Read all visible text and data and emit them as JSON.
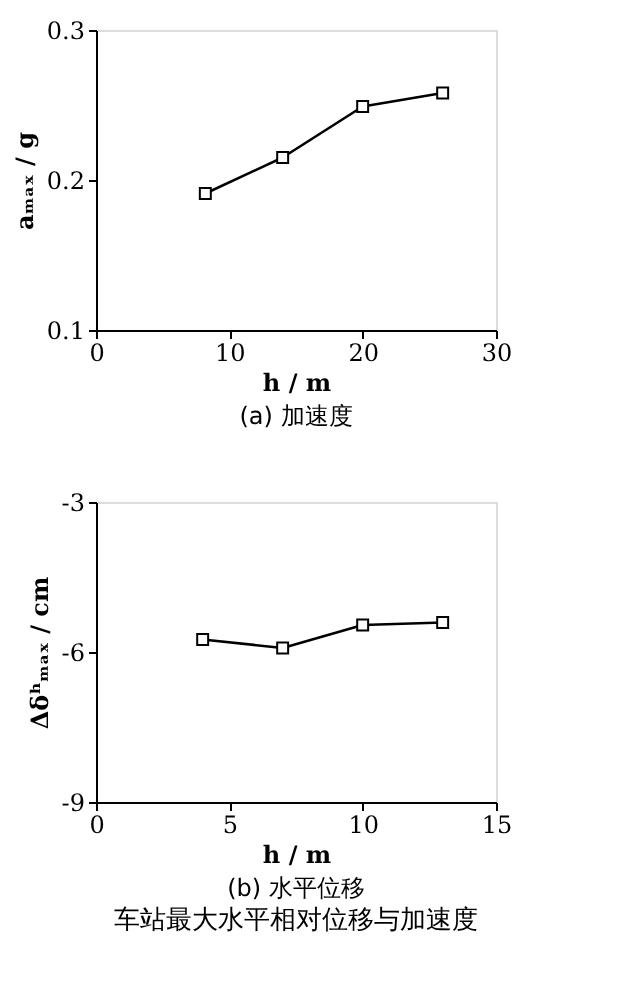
{
  "chart_data": [
    {
      "type": "line",
      "title": "(a) 加速度",
      "xlabel": "h / m",
      "ylabel": "aₘₐₓ / g",
      "x": [
        8.2,
        14,
        20,
        26
      ],
      "series": [
        {
          "color": "#000000",
          "values": [
            0.191,
            0.215,
            0.249,
            0.258
          ]
        }
      ],
      "xlim": [
        0,
        30
      ],
      "xticks": [
        0,
        10,
        20,
        30
      ],
      "ylim": [
        0.1,
        0.3
      ],
      "yticks": [
        0.1,
        0.2,
        0.3
      ],
      "marker": "square",
      "grid": false
    },
    {
      "type": "line",
      "title": "(b) 水平位移",
      "xlabel": "h / m",
      "ylabel": "Δδʰₘₐₓ / cm",
      "x": [
        4,
        7,
        10,
        13
      ],
      "series": [
        {
          "color": "#000000",
          "values": [
            -5.75,
            -5.92,
            -5.46,
            -5.41
          ]
        }
      ],
      "xlim": [
        0,
        15
      ],
      "xticks": [
        0,
        5,
        10,
        15
      ],
      "ylim": [
        -9,
        -3
      ],
      "yticks": [
        -9,
        -6,
        -3
      ],
      "marker": "square",
      "grid": false,
      "annotations": [
        "车站最大水平相对位移与加速度"
      ]
    }
  ]
}
